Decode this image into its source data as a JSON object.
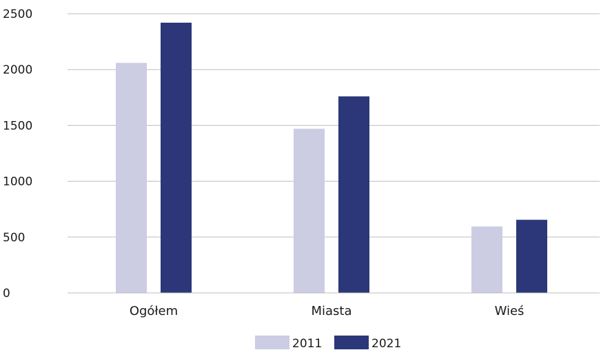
{
  "chart_data": {
    "type": "bar",
    "categories": [
      "Ogółem",
      "Miasta",
      "Wieś"
    ],
    "series": [
      {
        "name": "2011",
        "values": [
          2060,
          1470,
          595
        ],
        "color": "#cccce3"
      },
      {
        "name": "2021",
        "values": [
          2420,
          1760,
          655
        ],
        "color": "#2b3778"
      }
    ],
    "y_ticks": [
      "0",
      "500",
      "1000",
      "1500",
      "2000",
      "2500"
    ],
    "ylim": [
      0,
      2500
    ],
    "grid": true,
    "legend_position": "bottom",
    "title": "",
    "xlabel": "",
    "ylabel": ""
  }
}
